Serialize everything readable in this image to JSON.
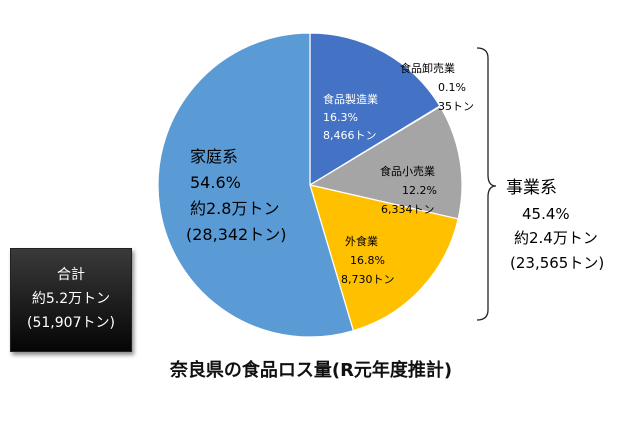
{
  "chart_data": {
    "type": "pie",
    "title": "奈良県の食品ロス量(R元年度推計)",
    "unit": "トン",
    "slices": [
      {
        "name": "食品製造業",
        "percent_label": "16.3%",
        "value": 8466,
        "value_label": "8,466トン",
        "color": "#4472c4",
        "text_color": "#ffffff"
      },
      {
        "name": "食品卸売業",
        "percent_label": "0.1%",
        "value": 35,
        "value_label": "35トン",
        "color": "#4472c4",
        "text_color": "#000000"
      },
      {
        "name": "食品小売業",
        "percent_label": "12.2%",
        "value": 6334,
        "value_label": "6,334トン",
        "color": "#a5a5a5",
        "text_color": "#000000"
      },
      {
        "name": "外食業",
        "percent_label": "16.8%",
        "value": 8730,
        "value_label": "8,730トン",
        "color": "#ffc000",
        "text_color": "#000000"
      },
      {
        "name": "家庭系",
        "percent_label": "54.6%",
        "value": 28342,
        "value_label": "約2.8万トン",
        "value_detail": "(28,342トン)",
        "color": "#5b9bd5",
        "text_color": "#000000"
      }
    ],
    "group": {
      "name": "事業系",
      "percent_label": "45.4%",
      "value_label": "約2.4万トン",
      "value_detail": "(23,565トン)"
    },
    "total": {
      "label": "合計",
      "value_label": "約5.2万トン",
      "value_detail": "(51,907トン)"
    }
  }
}
